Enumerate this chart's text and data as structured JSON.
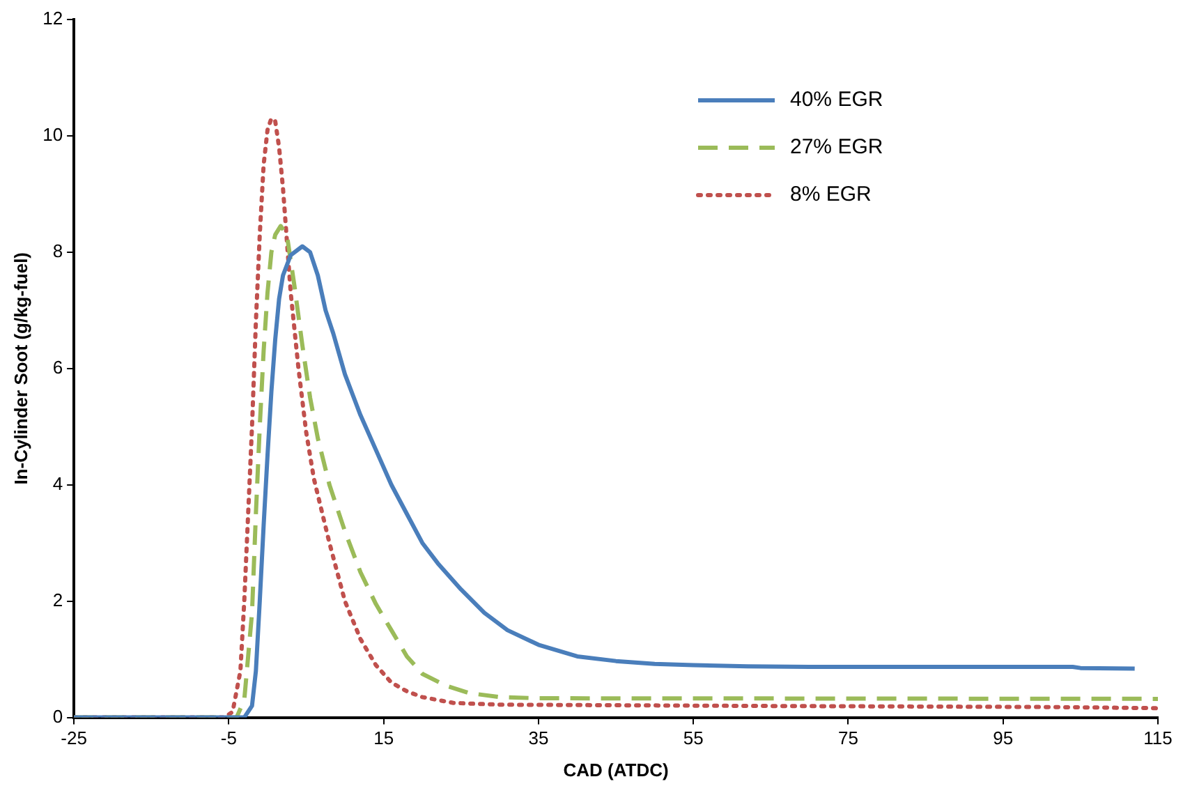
{
  "chart_data": {
    "type": "line",
    "xlabel": "CAD (ATDC)",
    "ylabel": "In-Cylinder Soot (g/kg-fuel)",
    "xlim": [
      -25,
      115
    ],
    "xticks": [
      -25,
      -5,
      15,
      35,
      55,
      75,
      95,
      115
    ],
    "ylim": [
      0,
      12
    ],
    "yticks": [
      0,
      2,
      4,
      6,
      8,
      10,
      12
    ],
    "grid": false,
    "legend": "top right",
    "marker": "none",
    "series": [
      {
        "name": "40% EGR",
        "color": "#4a7ebb",
        "line_style": "solid",
        "x": [
          -25,
          -4,
          -3,
          -2,
          -1.5,
          -1,
          -0.5,
          0,
          0.5,
          1,
          1.5,
          2,
          3,
          4.5,
          5.5,
          6.5,
          7.5,
          8.5,
          10,
          12,
          14,
          16,
          18,
          20,
          22,
          25,
          28,
          31,
          35,
          40,
          45,
          50,
          55,
          62,
          70,
          104,
          105,
          112
        ],
        "values": [
          0,
          0,
          0,
          0.2,
          0.8,
          2,
          3.3,
          4.5,
          5.6,
          6.5,
          7.2,
          7.6,
          7.95,
          8.1,
          8.0,
          7.6,
          7.0,
          6.6,
          5.9,
          5.2,
          4.6,
          4.0,
          3.5,
          3.0,
          2.65,
          2.2,
          1.8,
          1.5,
          1.25,
          1.05,
          0.97,
          0.92,
          0.9,
          0.88,
          0.87,
          0.87,
          0.85,
          0.84
        ]
      },
      {
        "name": "27% EGR",
        "color": "#9bbb59",
        "line_style": "dashed",
        "x": [
          -25,
          -4,
          -3,
          -2,
          -1.5,
          -1,
          -0.5,
          0,
          0.5,
          1,
          1.7,
          2.5,
          3.5,
          4.5,
          5.5,
          6.5,
          8,
          10,
          12,
          14,
          16,
          18,
          20,
          23,
          26,
          30,
          35,
          115
        ],
        "values": [
          0,
          0,
          0.3,
          1.8,
          3.5,
          5,
          6.3,
          7.3,
          8,
          8.3,
          8.45,
          8.3,
          7.4,
          6.4,
          5.5,
          4.8,
          4.0,
          3.2,
          2.5,
          1.95,
          1.5,
          1.05,
          0.75,
          0.55,
          0.42,
          0.35,
          0.33,
          0.32
        ]
      },
      {
        "name": "8% EGR",
        "color": "#c0504d",
        "line_style": "dotted",
        "x": [
          -25,
          -5.5,
          -4.5,
          -3.5,
          -3,
          -2.5,
          -2,
          -1.5,
          -1,
          -0.5,
          0,
          0.5,
          1,
          1.5,
          2,
          2.5,
          3,
          4,
          5,
          6,
          8,
          10,
          12,
          14,
          16,
          18,
          20,
          24,
          30,
          60,
          100,
          115
        ],
        "values": [
          0,
          0,
          0.1,
          0.8,
          2,
          3.5,
          5,
          6.8,
          8.3,
          9.5,
          10.1,
          10.3,
          10.25,
          9.8,
          9.1,
          8.2,
          7.3,
          6,
          4.9,
          4.1,
          3.0,
          2.0,
          1.35,
          0.9,
          0.6,
          0.45,
          0.35,
          0.25,
          0.22,
          0.2,
          0.18,
          0.16
        ]
      }
    ]
  }
}
